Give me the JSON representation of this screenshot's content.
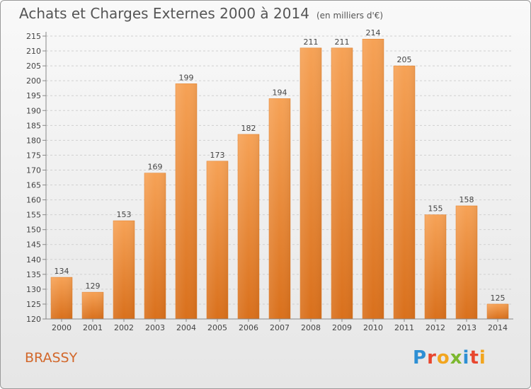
{
  "chart_data": {
    "type": "bar",
    "title": "Achats et Charges Externes 2000 à 2014",
    "subtitle": "(en milliers d'€)",
    "categories": [
      "2000",
      "2001",
      "2002",
      "2003",
      "2004",
      "2005",
      "2006",
      "2007",
      "2008",
      "2009",
      "2010",
      "2011",
      "2012",
      "2013",
      "2014"
    ],
    "values": [
      134,
      129,
      153,
      169,
      199,
      173,
      182,
      194,
      211,
      211,
      214,
      205,
      155,
      158,
      125
    ],
    "ylim": [
      120,
      215
    ],
    "yticks": [
      120,
      125,
      130,
      135,
      140,
      145,
      150,
      155,
      160,
      165,
      170,
      175,
      180,
      185,
      190,
      195,
      200,
      205,
      210,
      215
    ],
    "grid": true,
    "bar_color": "#f28a2e",
    "xlabel": "",
    "ylabel": ""
  },
  "footer": {
    "city": "BRASSY",
    "logo_text": "Proxiti",
    "logo_colors": [
      "#2d8fd4",
      "#e8462e",
      "#f2a51e",
      "#7cb82f",
      "#2d8fd4",
      "#e8462e",
      "#f2a51e"
    ]
  }
}
